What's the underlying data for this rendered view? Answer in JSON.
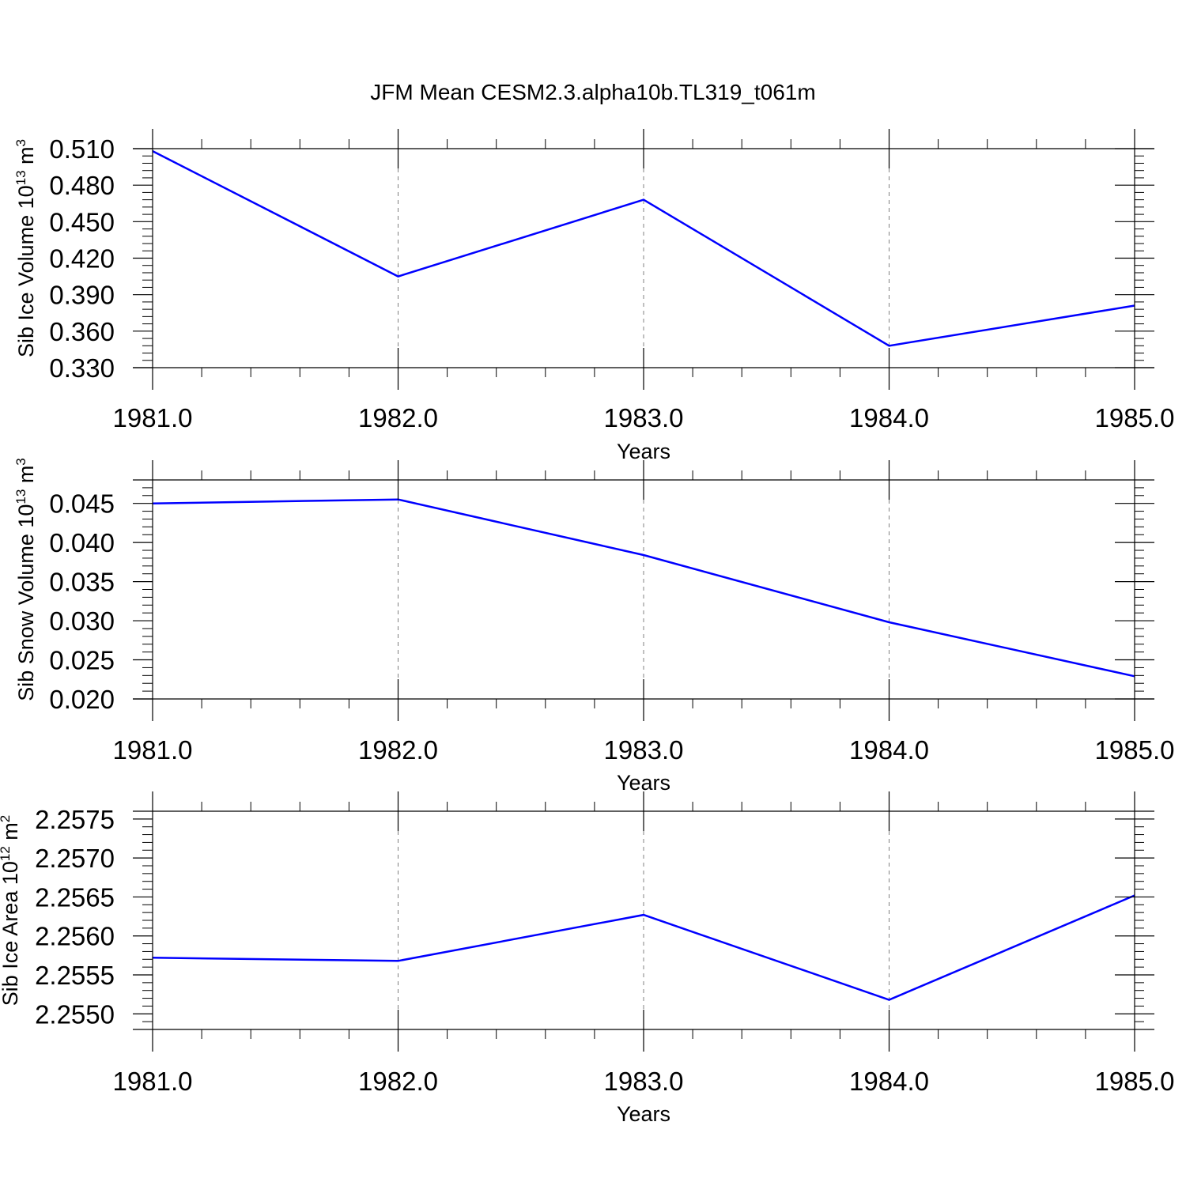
{
  "title": "JFM Mean CESM2.3.alpha10b.TL319_t061m",
  "colors": {
    "line": "#0000ff",
    "axis": "#000000",
    "grid": "#808080"
  },
  "chart_data": [
    {
      "type": "line",
      "x": [
        1981.0,
        1982.0,
        1983.0,
        1984.0,
        1985.0
      ],
      "x_tick_labels": [
        "1981.0",
        "1982.0",
        "1983.0",
        "1984.0",
        "1985.0"
      ],
      "xlabel": "Years",
      "ylabel": {
        "main": "Sib Ice Volume 10",
        "exp": "13",
        "unit": " m",
        "unit_exp": "3"
      },
      "y_tick_values": [
        0.33,
        0.36,
        0.39,
        0.42,
        0.45,
        0.48,
        0.51
      ],
      "y_tick_labels": [
        "0.330",
        "0.360",
        "0.390",
        "0.420",
        "0.450",
        "0.480",
        "0.510"
      ],
      "ylim": [
        0.33,
        0.51
      ],
      "y_minor_step": 0.006,
      "grid": "vertical dashed at major x ticks",
      "series": [
        {
          "values": [
            0.508,
            0.405,
            0.468,
            0.348,
            0.381
          ]
        }
      ]
    },
    {
      "type": "line",
      "x": [
        1981.0,
        1982.0,
        1983.0,
        1984.0,
        1985.0
      ],
      "x_tick_labels": [
        "1981.0",
        "1982.0",
        "1983.0",
        "1984.0",
        "1985.0"
      ],
      "xlabel": "Years",
      "ylabel": {
        "main": "Sib Snow Volume 10",
        "exp": "13",
        "unit": " m",
        "unit_exp": "3"
      },
      "y_tick_values": [
        0.02,
        0.025,
        0.03,
        0.035,
        0.04,
        0.045
      ],
      "y_tick_labels": [
        "0.020",
        "0.025",
        "0.030",
        "0.035",
        "0.040",
        "0.045"
      ],
      "ylim": [
        0.02,
        0.048
      ],
      "y_minor_step": 0.001,
      "grid": "vertical dashed at major x ticks",
      "series": [
        {
          "values": [
            0.045,
            0.0455,
            0.0384,
            0.0298,
            0.0229
          ]
        }
      ]
    },
    {
      "type": "line",
      "x": [
        1981.0,
        1982.0,
        1983.0,
        1984.0,
        1985.0
      ],
      "x_tick_labels": [
        "1981.0",
        "1982.0",
        "1983.0",
        "1984.0",
        "1985.0"
      ],
      "xlabel": "Years",
      "ylabel": {
        "main": "Sib Ice Area 10",
        "exp": "12",
        "unit": " m",
        "unit_exp": "2"
      },
      "y_tick_values": [
        2.255,
        2.2555,
        2.256,
        2.2565,
        2.257,
        2.2575
      ],
      "y_tick_labels": [
        "2.2550",
        "2.2555",
        "2.2560",
        "2.2565",
        "2.2570",
        "2.2575"
      ],
      "ylim": [
        2.2548,
        2.2576
      ],
      "y_minor_step": 0.0001,
      "grid": "vertical dashed at major x ticks",
      "series": [
        {
          "values": [
            2.25572,
            2.25568,
            2.25627,
            2.25518,
            2.25652
          ]
        }
      ]
    }
  ]
}
